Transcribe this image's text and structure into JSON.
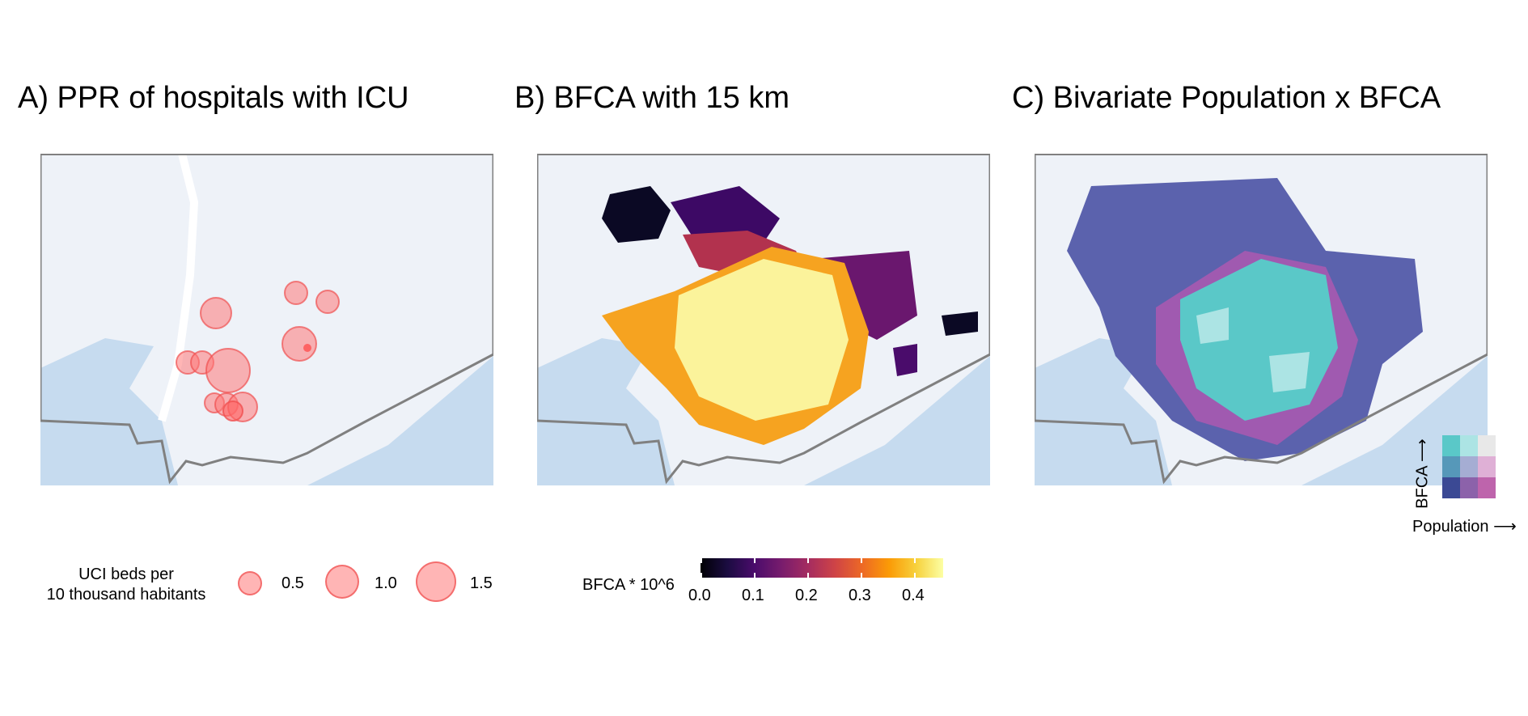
{
  "panels": {
    "a": {
      "title": "A) PPR of hospitals with ICU"
    },
    "b": {
      "title": "B) BFCA with 15 km"
    },
    "c": {
      "title": "C) Bivariate Population x BFCA"
    }
  },
  "legends": {
    "ppr": {
      "title_line1": "UCI beds per",
      "title_line2": "10 thousand habitants",
      "items": [
        {
          "label": "0.5",
          "value": 0.5
        },
        {
          "label": "1.0",
          "value": 1.0
        },
        {
          "label": "1.5",
          "value": 1.5
        }
      ]
    },
    "bfca": {
      "title": "BFCA * 10^6",
      "ticks": [
        "0.0",
        "0.1",
        "0.2",
        "0.3",
        "0.4"
      ]
    },
    "bivariate": {
      "y_label": "BFCA ⟶",
      "x_label": "Population ⟶",
      "grid_colors": [
        [
          "#5ac8c8",
          "#ace4e4",
          "#e8e8e8"
        ],
        [
          "#5698b9",
          "#a5add3",
          "#dfb0d6"
        ],
        [
          "#3b4994",
          "#8c62aa",
          "#be64ac"
        ]
      ]
    }
  },
  "colors": {
    "water": "#c6dbef",
    "land": "#eef2f8",
    "boundary": "#808080",
    "road": "#ffffff",
    "hospital_fill": "#ff8080"
  }
}
